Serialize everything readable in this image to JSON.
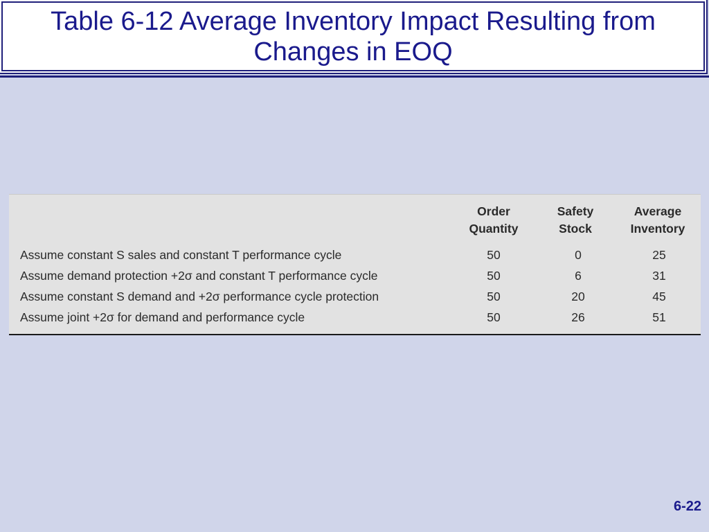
{
  "slide": {
    "title": "Table 6-12 Average Inventory Impact Resulting from Changes in EOQ",
    "page_number": "6-22"
  },
  "table": {
    "headers": {
      "order_quantity": [
        "Order",
        "Quantity"
      ],
      "safety_stock": [
        "Safety",
        "Stock"
      ],
      "average_inventory": [
        "Average",
        "Inventory"
      ]
    },
    "rows": [
      {
        "description": "Assume constant S sales and constant T performance cycle",
        "order_quantity": "50",
        "safety_stock": "0",
        "average_inventory": "25"
      },
      {
        "description": "Assume demand protection +2σ and constant T performance cycle",
        "order_quantity": "50",
        "safety_stock": "6",
        "average_inventory": "31"
      },
      {
        "description": "Assume constant S demand and +2σ performance cycle protection",
        "order_quantity": "50",
        "safety_stock": "20",
        "average_inventory": "45"
      },
      {
        "description": "Assume joint +2σ for demand and performance cycle",
        "order_quantity": "50",
        "safety_stock": "26",
        "average_inventory": "51"
      }
    ]
  },
  "colors": {
    "background": "#d0d5ea",
    "title_text": "#1a1a8c",
    "table_background": "#e2e2e2"
  }
}
